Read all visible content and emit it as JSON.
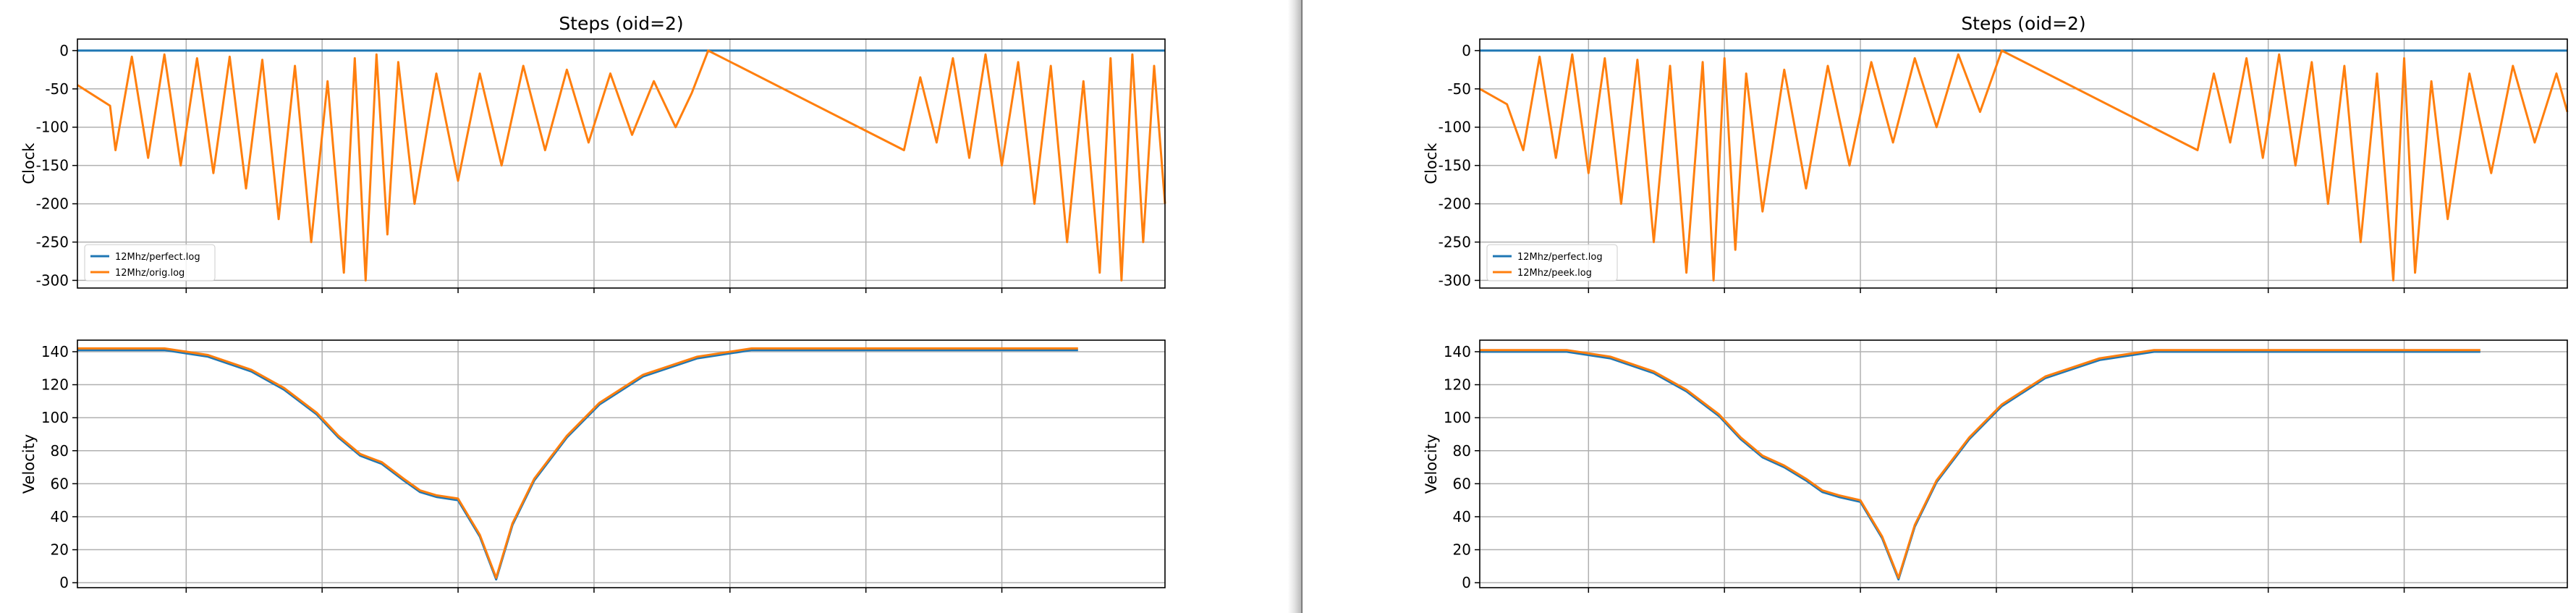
{
  "colors": {
    "series_blue": "#1f77b4",
    "series_orange": "#ff7f0e"
  },
  "chart_data": [
    {
      "panel": "left",
      "type": "line",
      "title": "Steps (oid=2)",
      "xlabel": "",
      "ylabel": "Clock",
      "ylim": [
        -310,
        15
      ],
      "yticks": [
        0,
        -50,
        -100,
        -150,
        -200,
        -250,
        -300
      ],
      "grid": true,
      "legend_placement": "lower-left",
      "series": [
        {
          "name": "12Mhz/perfect.log",
          "values": [
            [
              0,
              0
            ],
            [
              100,
              0
            ]
          ]
        },
        {
          "name": "12Mhz/orig.log",
          "values": [
            [
              0,
              -45
            ],
            [
              3,
              -72
            ],
            [
              3.5,
              -130
            ],
            [
              5,
              -8
            ],
            [
              6.5,
              -140
            ],
            [
              8,
              -5
            ],
            [
              9.5,
              -150
            ],
            [
              11,
              -10
            ],
            [
              12.5,
              -160
            ],
            [
              14,
              -8
            ],
            [
              15.5,
              -180
            ],
            [
              17,
              -12
            ],
            [
              18.5,
              -220
            ],
            [
              20,
              -20
            ],
            [
              21.5,
              -250
            ],
            [
              23,
              -40
            ],
            [
              24.5,
              -290
            ],
            [
              25.5,
              -10
            ],
            [
              26.5,
              -300
            ],
            [
              27.5,
              -5
            ],
            [
              28.5,
              -240
            ],
            [
              29.5,
              -15
            ],
            [
              31,
              -200
            ],
            [
              33,
              -30
            ],
            [
              35,
              -170
            ],
            [
              37,
              -30
            ],
            [
              39,
              -150
            ],
            [
              41,
              -20
            ],
            [
              43,
              -130
            ],
            [
              45,
              -25
            ],
            [
              47,
              -120
            ],
            [
              49,
              -30
            ],
            [
              51,
              -110
            ],
            [
              53,
              -40
            ],
            [
              55,
              -100
            ],
            [
              56.5,
              -55
            ],
            [
              58,
              0
            ],
            [
              76,
              -130
            ],
            [
              77.5,
              -35
            ],
            [
              79,
              -120
            ],
            [
              80.5,
              -10
            ],
            [
              82,
              -140
            ],
            [
              83.5,
              -5
            ],
            [
              85,
              -150
            ],
            [
              86.5,
              -15
            ],
            [
              88,
              -200
            ],
            [
              89.5,
              -20
            ],
            [
              91,
              -250
            ],
            [
              92.5,
              -40
            ],
            [
              94,
              -290
            ],
            [
              95,
              -10
            ],
            [
              96,
              -300
            ],
            [
              97,
              -5
            ],
            [
              98,
              -250
            ],
            [
              99,
              -20
            ],
            [
              100,
              -200
            ]
          ]
        }
      ]
    },
    {
      "panel": "left",
      "type": "line",
      "title": "",
      "xlabel": "",
      "ylabel": "Velocity",
      "ylim": [
        -3,
        147
      ],
      "yticks": [
        0,
        20,
        40,
        60,
        80,
        100,
        120,
        140
      ],
      "grid": true,
      "series": [
        {
          "name": "",
          "values": [
            [
              0,
              141
            ],
            [
              8,
              141
            ],
            [
              12,
              137
            ],
            [
              16,
              128
            ],
            [
              19,
              117
            ],
            [
              22,
              102
            ],
            [
              24,
              88
            ],
            [
              26,
              77
            ],
            [
              28,
              72
            ],
            [
              30,
              62
            ],
            [
              31.5,
              55
            ],
            [
              33,
              52
            ],
            [
              35,
              50
            ],
            [
              37,
              28
            ],
            [
              38.5,
              2
            ],
            [
              40,
              35
            ],
            [
              42,
              62
            ],
            [
              45,
              88
            ],
            [
              48,
              108
            ],
            [
              52,
              125
            ],
            [
              57,
              136
            ],
            [
              62,
              141
            ],
            [
              92,
              141
            ]
          ]
        },
        {
          "name": "",
          "values": [
            [
              0,
              142
            ],
            [
              8,
              142
            ],
            [
              12,
              138
            ],
            [
              16,
              129
            ],
            [
              19,
              118
            ],
            [
              22,
              103
            ],
            [
              24,
              89
            ],
            [
              26,
              78
            ],
            [
              28,
              73
            ],
            [
              30,
              63
            ],
            [
              31.5,
              56
            ],
            [
              33,
              53
            ],
            [
              35,
              51
            ],
            [
              37,
              29
            ],
            [
              38.5,
              3
            ],
            [
              40,
              36
            ],
            [
              42,
              63
            ],
            [
              45,
              89
            ],
            [
              48,
              109
            ],
            [
              52,
              126
            ],
            [
              57,
              137
            ],
            [
              62,
              142
            ],
            [
              92,
              142
            ]
          ]
        }
      ]
    },
    {
      "panel": "right",
      "type": "line",
      "title": "Steps (oid=2)",
      "xlabel": "",
      "ylabel": "Clock",
      "ylim": [
        -310,
        15
      ],
      "yticks": [
        0,
        -50,
        -100,
        -150,
        -200,
        -250,
        -300
      ],
      "grid": true,
      "legend_placement": "lower-left",
      "series": [
        {
          "name": "12Mhz/perfect.log",
          "values": [
            [
              0,
              0
            ],
            [
              100,
              0
            ]
          ]
        },
        {
          "name": "12Mhz/peek.log",
          "values": [
            [
              0,
              -50
            ],
            [
              2.5,
              -70
            ],
            [
              4,
              -130
            ],
            [
              5.5,
              -8
            ],
            [
              7,
              -140
            ],
            [
              8.5,
              -5
            ],
            [
              10,
              -160
            ],
            [
              11.5,
              -10
            ],
            [
              13,
              -200
            ],
            [
              14.5,
              -12
            ],
            [
              16,
              -250
            ],
            [
              17.5,
              -20
            ],
            [
              19,
              -290
            ],
            [
              20.5,
              -15
            ],
            [
              21.5,
              -300
            ],
            [
              22.5,
              -10
            ],
            [
              23.5,
              -260
            ],
            [
              24.5,
              -30
            ],
            [
              26,
              -210
            ],
            [
              28,
              -25
            ],
            [
              30,
              -180
            ],
            [
              32,
              -20
            ],
            [
              34,
              -150
            ],
            [
              36,
              -15
            ],
            [
              38,
              -120
            ],
            [
              40,
              -10
            ],
            [
              42,
              -100
            ],
            [
              44,
              -5
            ],
            [
              46,
              -80
            ],
            [
              48,
              0
            ],
            [
              66,
              -130
            ],
            [
              67.5,
              -30
            ],
            [
              69,
              -120
            ],
            [
              70.5,
              -10
            ],
            [
              72,
              -140
            ],
            [
              73.5,
              -5
            ],
            [
              75,
              -150
            ],
            [
              76.5,
              -15
            ],
            [
              78,
              -200
            ],
            [
              79.5,
              -20
            ],
            [
              81,
              -250
            ],
            [
              82.5,
              -30
            ],
            [
              84,
              -300
            ],
            [
              85,
              -10
            ],
            [
              86,
              -290
            ],
            [
              87.5,
              -40
            ],
            [
              89,
              -220
            ],
            [
              91,
              -30
            ],
            [
              93,
              -160
            ],
            [
              95,
              -20
            ],
            [
              97,
              -120
            ],
            [
              99,
              -30
            ],
            [
              100,
              -80
            ]
          ]
        }
      ]
    },
    {
      "panel": "right",
      "type": "line",
      "title": "",
      "xlabel": "",
      "ylabel": "Velocity",
      "ylim": [
        -3,
        147
      ],
      "yticks": [
        0,
        20,
        40,
        60,
        80,
        100,
        120,
        140
      ],
      "grid": true,
      "series": [
        {
          "name": "",
          "values": [
            [
              0,
              140
            ],
            [
              8,
              140
            ],
            [
              12,
              136
            ],
            [
              16,
              127
            ],
            [
              19,
              116
            ],
            [
              22,
              101
            ],
            [
              24,
              87
            ],
            [
              26,
              76
            ],
            [
              28,
              70
            ],
            [
              30,
              62
            ],
            [
              31.5,
              55
            ],
            [
              33,
              52
            ],
            [
              35,
              49
            ],
            [
              37,
              27
            ],
            [
              38.5,
              2
            ],
            [
              40,
              34
            ],
            [
              42,
              61
            ],
            [
              45,
              87
            ],
            [
              48,
              107
            ],
            [
              52,
              124
            ],
            [
              57,
              135
            ],
            [
              62,
              140
            ],
            [
              92,
              140
            ]
          ]
        },
        {
          "name": "",
          "values": [
            [
              0,
              141
            ],
            [
              8,
              141
            ],
            [
              12,
              137
            ],
            [
              16,
              128
            ],
            [
              19,
              117
            ],
            [
              22,
              102
            ],
            [
              24,
              88
            ],
            [
              26,
              77
            ],
            [
              28,
              71
            ],
            [
              30,
              63
            ],
            [
              31.5,
              56
            ],
            [
              33,
              53
            ],
            [
              35,
              50
            ],
            [
              37,
              28
            ],
            [
              38.5,
              3
            ],
            [
              40,
              35
            ],
            [
              42,
              62
            ],
            [
              45,
              88
            ],
            [
              48,
              108
            ],
            [
              52,
              125
            ],
            [
              57,
              136
            ],
            [
              62,
              141
            ],
            [
              92,
              141
            ]
          ]
        }
      ]
    }
  ]
}
